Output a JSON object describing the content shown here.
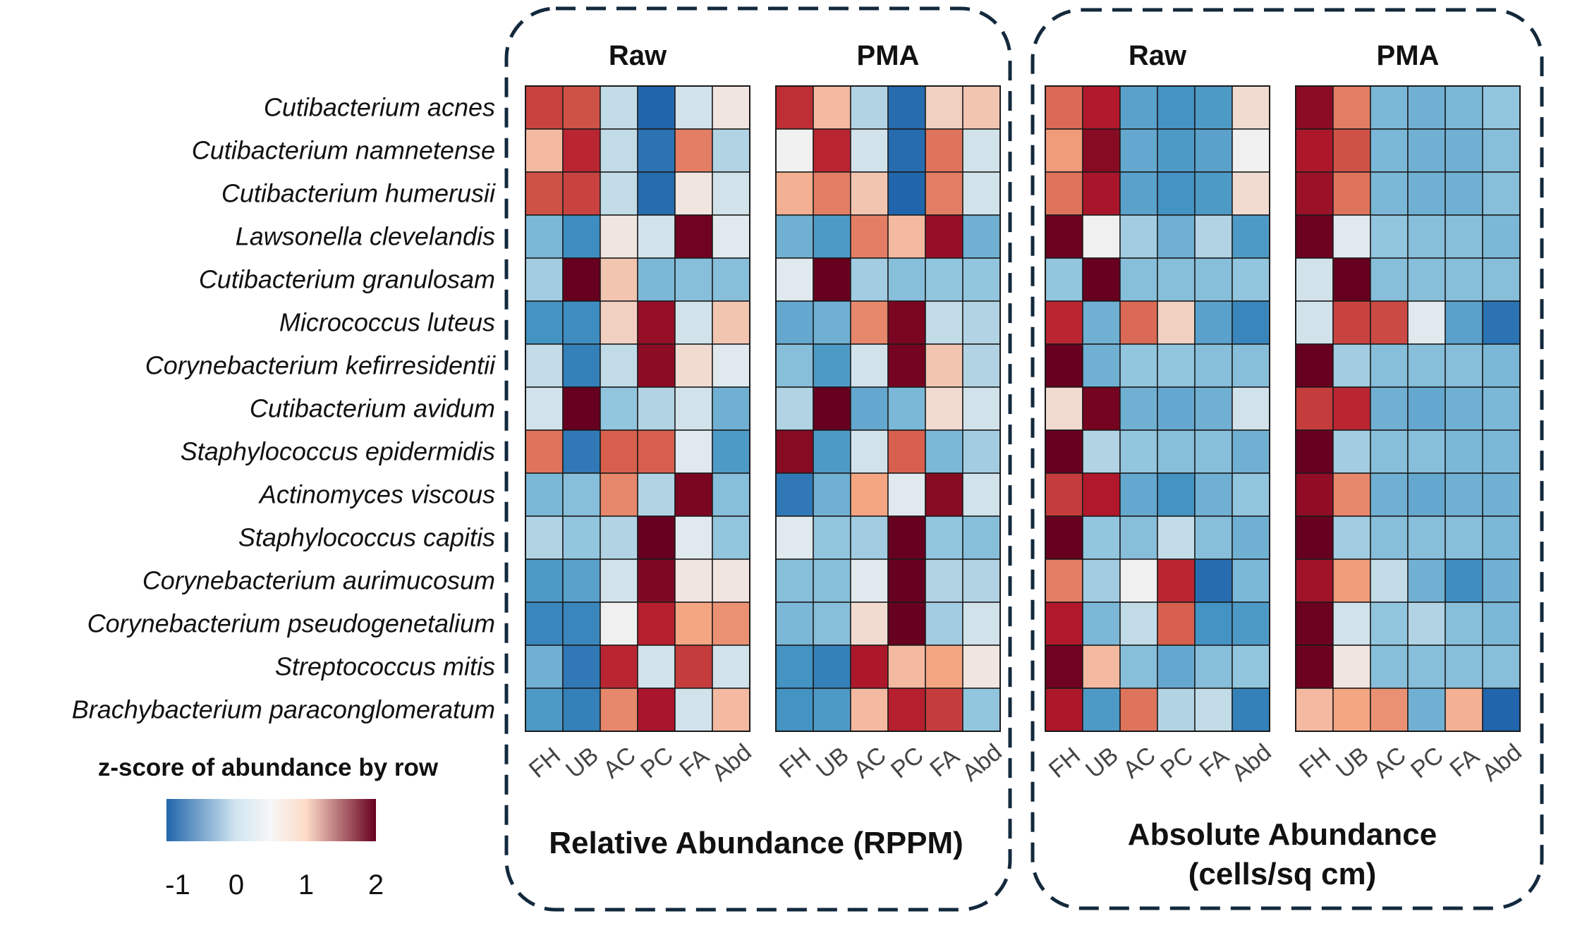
{
  "chart_data": [
    {
      "type": "heatmap",
      "group": "Relative Abundance (RPPM)",
      "title": "Raw",
      "x": [
        "FH",
        "UB",
        "AC",
        "PC",
        "FA",
        "Abd"
      ],
      "y": [
        "Cutibacterium acnes",
        "Cutibacterium namnetense",
        "Cutibacterium humerusii",
        "Lawsonella clevelandis",
        "Cutibacterium granulosam",
        "Micrococcus luteus",
        "Corynebacterium kefirresidentii",
        "Cutibacterium avidum",
        "Staphylococcus epidermidis",
        "Actinomyces viscous",
        "Staphylococcus capitis",
        "Corynebacterium aurimucosum",
        "Corynebacterium pseudogenetalium",
        "Streptococcus mitis",
        "Brachybacterium paraconglomeratum"
      ],
      "values": [
        [
          0.9,
          0.8,
          -0.15,
          -1.0,
          -0.1,
          0.05
        ],
        [
          0.25,
          1.1,
          -0.15,
          -0.9,
          0.55,
          -0.2
        ],
        [
          0.8,
          0.9,
          -0.15,
          -0.95,
          0.05,
          -0.1
        ],
        [
          -0.4,
          -0.7,
          0.05,
          -0.1,
          1.9,
          -0.05
        ],
        [
          -0.25,
          2.0,
          0.2,
          -0.4,
          -0.35,
          -0.35
        ],
        [
          -0.65,
          -0.7,
          0.15,
          1.5,
          -0.1,
          0.2
        ],
        [
          -0.15,
          -0.8,
          -0.15,
          1.6,
          0.1,
          -0.05
        ],
        [
          -0.1,
          2.0,
          -0.3,
          -0.2,
          -0.1,
          -0.45
        ],
        [
          0.6,
          -0.85,
          0.7,
          0.7,
          -0.05,
          -0.6
        ],
        [
          -0.4,
          -0.35,
          0.5,
          -0.2,
          1.8,
          -0.35
        ],
        [
          -0.2,
          -0.3,
          -0.2,
          2.0,
          -0.05,
          -0.3
        ],
        [
          -0.6,
          -0.55,
          -0.1,
          1.75,
          0.05,
          0.05
        ],
        [
          -0.75,
          -0.75,
          0.0,
          1.15,
          0.35,
          0.45
        ],
        [
          -0.45,
          -0.85,
          1.1,
          -0.1,
          0.95,
          -0.1
        ],
        [
          -0.6,
          -0.8,
          0.5,
          1.3,
          -0.1,
          0.25
        ]
      ]
    },
    {
      "type": "heatmap",
      "group": "Relative Abundance (RPPM)",
      "title": "PMA",
      "x": [
        "FH",
        "UB",
        "AC",
        "PC",
        "FA",
        "Abd"
      ],
      "y": [
        "Cutibacterium acnes",
        "Cutibacterium namnetense",
        "Cutibacterium humerusii",
        "Lawsonella clevelandis",
        "Cutibacterium granulosam",
        "Micrococcus luteus",
        "Corynebacterium kefirresidentii",
        "Cutibacterium avidum",
        "Staphylococcus epidermidis",
        "Actinomyces viscous",
        "Staphylococcus capitis",
        "Corynebacterium aurimucosum",
        "Corynebacterium pseudogenetalium",
        "Streptococcus mitis",
        "Brachybacterium paraconglomeratum"
      ],
      "values": [
        [
          1.05,
          0.25,
          -0.2,
          -0.95,
          0.15,
          0.2
        ],
        [
          0.0,
          1.1,
          -0.1,
          -0.95,
          0.6,
          -0.1
        ],
        [
          0.3,
          0.55,
          0.2,
          -1.0,
          0.55,
          -0.1
        ],
        [
          -0.45,
          -0.6,
          0.55,
          0.25,
          1.5,
          -0.45
        ],
        [
          -0.05,
          2.0,
          -0.25,
          -0.35,
          -0.3,
          -0.3
        ],
        [
          -0.5,
          -0.45,
          0.5,
          1.8,
          -0.15,
          -0.2
        ],
        [
          -0.35,
          -0.6,
          -0.1,
          1.85,
          0.2,
          -0.2
        ],
        [
          -0.2,
          2.0,
          -0.5,
          -0.4,
          0.1,
          -0.1
        ],
        [
          1.65,
          -0.6,
          -0.1,
          0.7,
          -0.4,
          -0.25
        ],
        [
          -0.85,
          -0.45,
          0.35,
          -0.05,
          1.65,
          -0.1
        ],
        [
          -0.05,
          -0.3,
          -0.25,
          2.0,
          -0.3,
          -0.35
        ],
        [
          -0.35,
          -0.35,
          -0.05,
          2.0,
          -0.2,
          -0.2
        ],
        [
          -0.4,
          -0.35,
          0.1,
          2.0,
          -0.25,
          -0.1
        ],
        [
          -0.65,
          -0.8,
          1.25,
          0.25,
          0.35,
          0.05
        ],
        [
          -0.65,
          -0.6,
          0.25,
          1.15,
          0.95,
          -0.3
        ]
      ]
    },
    {
      "type": "heatmap",
      "group": "Absolute Abundance (cells/sq cm)",
      "title": "Raw",
      "x": [
        "FH",
        "UB",
        "AC",
        "PC",
        "FA",
        "Abd"
      ],
      "y": [
        "Cutibacterium acnes",
        "Cutibacterium namnetense",
        "Cutibacterium humerusii",
        "Lawsonella clevelandis",
        "Cutibacterium granulosam",
        "Micrococcus luteus",
        "Corynebacterium kefirresidentii",
        "Cutibacterium avidum",
        "Staphylococcus epidermidis",
        "Actinomyces viscous",
        "Staphylococcus capitis",
        "Corynebacterium aurimucosum",
        "Corynebacterium pseudogenetalium",
        "Streptococcus mitis",
        "Brachybacterium paraconglomeratum"
      ],
      "values": [
        [
          0.65,
          1.2,
          -0.55,
          -0.65,
          -0.6,
          0.1
        ],
        [
          0.4,
          1.65,
          -0.5,
          -0.6,
          -0.55,
          0.0
        ],
        [
          0.6,
          1.3,
          -0.55,
          -0.65,
          -0.6,
          0.1
        ],
        [
          1.95,
          0.0,
          -0.25,
          -0.45,
          -0.2,
          -0.6
        ],
        [
          -0.3,
          2.0,
          -0.35,
          -0.35,
          -0.35,
          -0.3
        ],
        [
          1.1,
          -0.45,
          0.65,
          0.15,
          -0.55,
          -0.75
        ],
        [
          2.0,
          -0.45,
          -0.3,
          -0.3,
          -0.35,
          -0.35
        ],
        [
          0.1,
          1.85,
          -0.45,
          -0.5,
          -0.45,
          -0.1
        ],
        [
          2.0,
          -0.2,
          -0.3,
          -0.35,
          -0.35,
          -0.45
        ],
        [
          0.95,
          1.2,
          -0.5,
          -0.65,
          -0.45,
          -0.3
        ],
        [
          2.0,
          -0.3,
          -0.35,
          -0.15,
          -0.35,
          -0.45
        ],
        [
          0.55,
          -0.25,
          0.0,
          1.1,
          -0.95,
          -0.4
        ],
        [
          1.2,
          -0.4,
          -0.15,
          0.7,
          -0.65,
          -0.6
        ],
        [
          1.9,
          0.25,
          -0.35,
          -0.5,
          -0.35,
          -0.3
        ],
        [
          1.25,
          -0.6,
          0.6,
          -0.2,
          -0.15,
          -0.8
        ]
      ]
    },
    {
      "type": "heatmap",
      "group": "Absolute Abundance (cells/sq cm)",
      "title": "PMA",
      "x": [
        "FH",
        "UB",
        "AC",
        "PC",
        "FA",
        "Abd"
      ],
      "y": [
        "Cutibacterium acnes",
        "Cutibacterium namnetense",
        "Cutibacterium humerusii",
        "Lawsonella clevelandis",
        "Cutibacterium granulosam",
        "Micrococcus luteus",
        "Corynebacterium kefirresidentii",
        "Cutibacterium avidum",
        "Staphylococcus epidermidis",
        "Actinomyces viscous",
        "Staphylococcus capitis",
        "Corynebacterium aurimucosum",
        "Corynebacterium pseudogenetalium",
        "Streptococcus mitis",
        "Brachybacterium paraconglomeratum"
      ],
      "values": [
        [
          1.6,
          0.55,
          -0.4,
          -0.45,
          -0.4,
          -0.3
        ],
        [
          1.25,
          0.8,
          -0.4,
          -0.45,
          -0.45,
          -0.35
        ],
        [
          1.45,
          0.6,
          -0.4,
          -0.45,
          -0.45,
          -0.35
        ],
        [
          1.95,
          -0.05,
          -0.3,
          -0.35,
          -0.35,
          -0.4
        ],
        [
          -0.1,
          2.0,
          -0.35,
          -0.35,
          -0.35,
          -0.35
        ],
        [
          -0.1,
          0.9,
          0.85,
          -0.05,
          -0.55,
          -0.9
        ],
        [
          2.0,
          -0.25,
          -0.35,
          -0.35,
          -0.35,
          -0.4
        ],
        [
          0.95,
          1.1,
          -0.45,
          -0.5,
          -0.45,
          -0.4
        ],
        [
          2.0,
          -0.25,
          -0.35,
          -0.35,
          -0.4,
          -0.4
        ],
        [
          1.55,
          0.5,
          -0.45,
          -0.5,
          -0.45,
          -0.45
        ],
        [
          2.0,
          -0.25,
          -0.35,
          -0.35,
          -0.35,
          -0.4
        ],
        [
          1.4,
          0.4,
          -0.15,
          -0.45,
          -0.7,
          -0.45
        ],
        [
          1.95,
          -0.1,
          -0.3,
          -0.2,
          -0.35,
          -0.4
        ],
        [
          1.95,
          0.05,
          -0.35,
          -0.35,
          -0.35,
          -0.35
        ],
        [
          0.25,
          0.35,
          0.45,
          -0.45,
          0.3,
          -1.0
        ]
      ]
    }
  ],
  "group_titles": [
    "Relative Abundance (RPPM)",
    "Absolute Abundance",
    "(cells/sq cm)"
  ],
  "legend": {
    "title": "z-score of abundance by row",
    "ticks": [
      "-1",
      "0",
      "1",
      "2"
    ],
    "range": [
      -1,
      2
    ],
    "colors": [
      "#2166ac",
      "#d1e5f0",
      "#fddbc7",
      "#67001f"
    ]
  },
  "colors": {
    "outline": "#13293d",
    "cell_border": "#1a1a1a",
    "tick_text": "#444444"
  }
}
